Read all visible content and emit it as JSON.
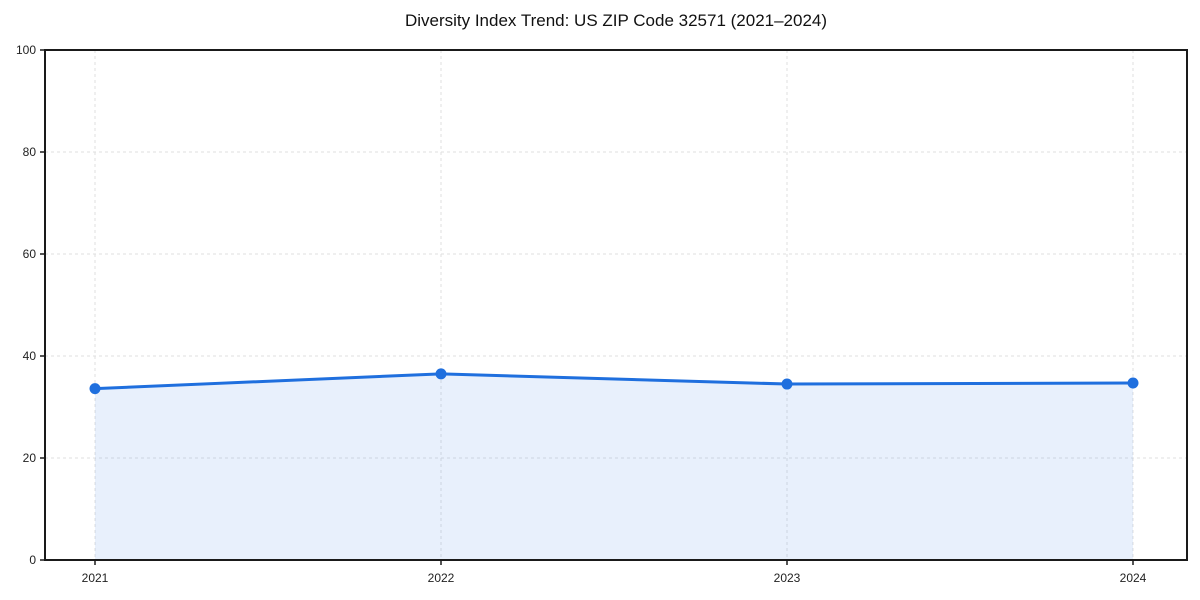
{
  "page": {
    "title": "Diversity Index Trend: US ZIP Code 32571 (2021–2024)"
  },
  "chart_data": {
    "type": "line",
    "title": "Diversity Index Trend: US ZIP Code 32571 (2021–2024)",
    "x": [
      "2021",
      "2022",
      "2023",
      "2024"
    ],
    "values": [
      33.6,
      36.5,
      34.5,
      34.7
    ],
    "xlabel": "",
    "ylabel": "",
    "ylim": [
      0,
      100
    ],
    "yticks": [
      0,
      20,
      40,
      60,
      80,
      100
    ],
    "grid": "dashed",
    "legend_position": "none",
    "colors": {
      "line": "#1f6fde",
      "marker": "#1f6fde",
      "area_fill": "rgba(31,111,222,0.10)",
      "gridline": "#dfdfdf",
      "spine": "#1a1a1a",
      "tick_label": "#222222",
      "title": "#111111"
    }
  }
}
